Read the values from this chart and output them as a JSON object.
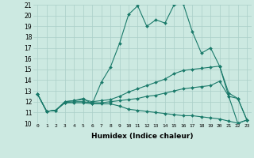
{
  "xlabel": "Humidex (Indice chaleur)",
  "xlim": [
    -0.5,
    23.5
  ],
  "ylim": [
    10,
    21
  ],
  "xticks": [
    0,
    1,
    2,
    3,
    4,
    5,
    6,
    7,
    8,
    9,
    10,
    11,
    12,
    13,
    14,
    15,
    16,
    17,
    18,
    19,
    20,
    21,
    22,
    23
  ],
  "yticks": [
    10,
    11,
    12,
    13,
    14,
    15,
    16,
    17,
    18,
    19,
    20,
    21
  ],
  "bg_color": "#cce9e1",
  "line_color": "#1a7a6a",
  "grid_color": "#aacfc8",
  "line1_x": [
    0,
    1,
    2,
    3,
    4,
    5,
    6,
    7,
    8,
    9,
    10,
    11,
    12,
    13,
    14,
    15,
    16,
    17,
    18,
    19,
    20,
    21,
    22,
    23
  ],
  "line1_y": [
    12.7,
    11.1,
    11.2,
    12.0,
    12.1,
    12.3,
    11.8,
    13.8,
    15.2,
    17.4,
    20.1,
    20.9,
    19.0,
    19.6,
    19.3,
    21.0,
    21.1,
    18.5,
    16.5,
    17.0,
    15.3,
    12.8,
    12.3,
    10.3
  ],
  "line2_x": [
    0,
    1,
    2,
    3,
    4,
    5,
    6,
    7,
    8,
    9,
    10,
    11,
    12,
    13,
    14,
    15,
    16,
    17,
    18,
    19,
    20,
    21,
    22,
    23
  ],
  "line2_y": [
    12.7,
    11.1,
    11.2,
    12.0,
    12.1,
    12.2,
    12.0,
    12.1,
    12.2,
    12.5,
    12.9,
    13.2,
    13.5,
    13.8,
    14.1,
    14.6,
    14.9,
    15.0,
    15.1,
    15.2,
    15.3,
    12.5,
    12.3,
    10.3
  ],
  "line3_x": [
    0,
    1,
    2,
    3,
    4,
    5,
    6,
    7,
    8,
    9,
    10,
    11,
    12,
    13,
    14,
    15,
    16,
    17,
    18,
    19,
    20,
    21,
    22,
    23
  ],
  "line3_y": [
    12.7,
    11.1,
    11.2,
    11.9,
    12.0,
    12.0,
    11.9,
    11.9,
    12.0,
    12.1,
    12.2,
    12.3,
    12.5,
    12.6,
    12.8,
    13.0,
    13.2,
    13.3,
    13.4,
    13.5,
    13.9,
    12.5,
    10.0,
    10.3
  ],
  "line4_x": [
    0,
    1,
    2,
    3,
    4,
    5,
    6,
    7,
    8,
    9,
    10,
    11,
    12,
    13,
    14,
    15,
    16,
    17,
    18,
    19,
    20,
    21,
    22,
    23
  ],
  "line4_y": [
    12.7,
    11.1,
    11.2,
    11.9,
    11.9,
    11.9,
    11.8,
    11.8,
    11.8,
    11.6,
    11.3,
    11.2,
    11.1,
    11.0,
    10.9,
    10.8,
    10.7,
    10.7,
    10.6,
    10.5,
    10.4,
    10.2,
    10.0,
    10.3
  ]
}
